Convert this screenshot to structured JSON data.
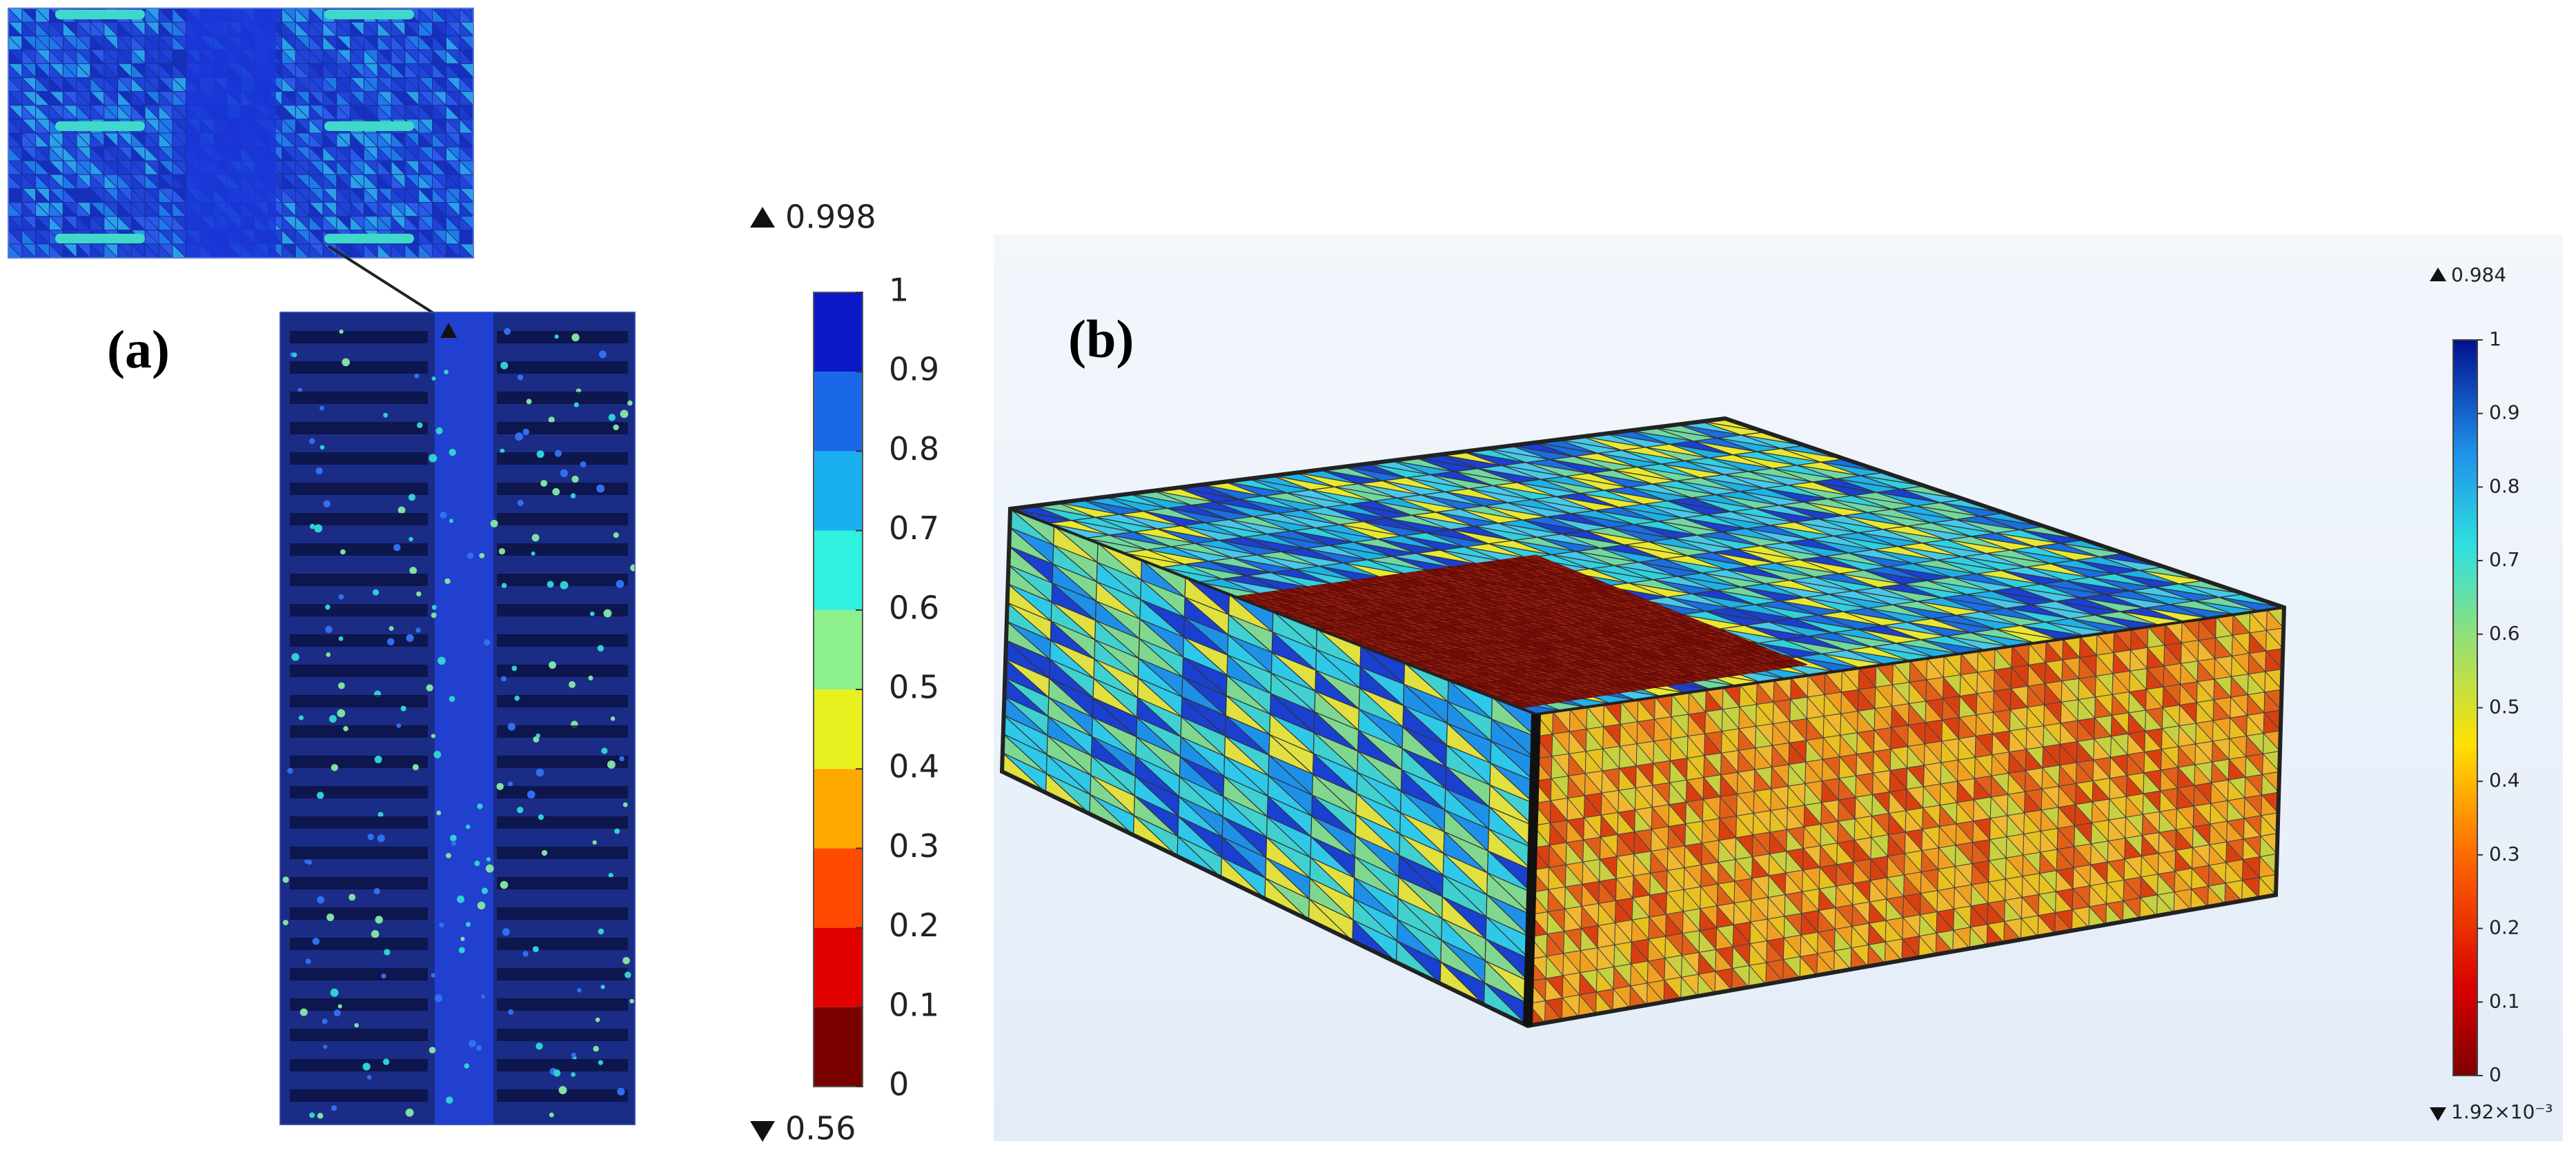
{
  "panel_a": {
    "label": "(a)",
    "colorbar": {
      "max_label": "0.998",
      "min_label": "0.56",
      "ticks": [
        0,
        0.1,
        0.2,
        0.3,
        0.4,
        0.5,
        0.6,
        0.7,
        0.8,
        0.9,
        1
      ]
    }
  },
  "panel_b": {
    "label": "(b)",
    "colorbar": {
      "max_label": "0.984",
      "min_label": "1.92×10⁻³",
      "ticks": [
        0,
        0.1,
        0.2,
        0.3,
        0.4,
        0.5,
        0.6,
        0.7,
        0.8,
        0.9,
        1
      ]
    }
  }
}
